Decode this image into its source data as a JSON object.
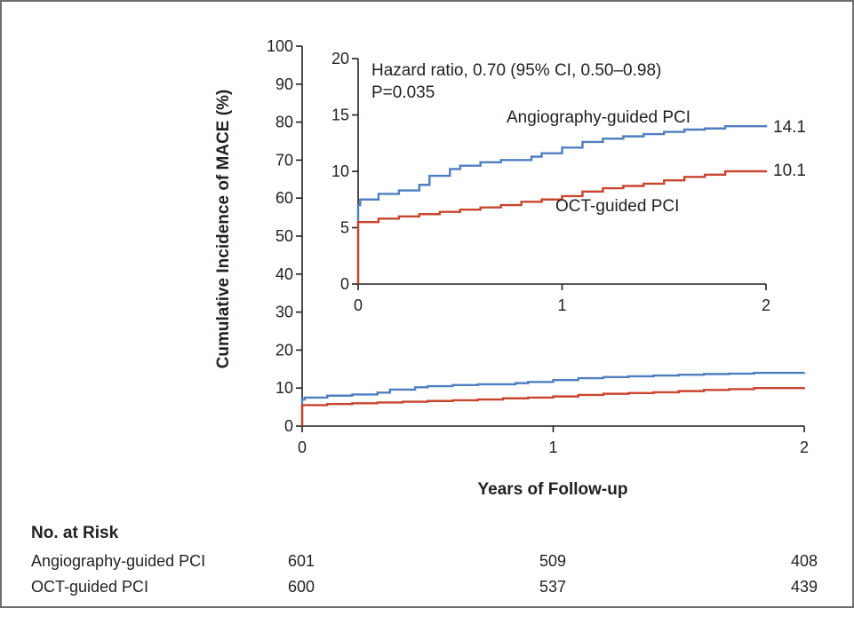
{
  "chart_data": {
    "type": "line",
    "xlabel": "Years of Follow-up",
    "ylabel": "Cumulative Incidence of MACE (%)",
    "xlim": [
      0,
      2
    ],
    "ylim": [
      0,
      100
    ],
    "x_ticks": [
      "0",
      "1",
      "2"
    ],
    "y_ticks": [
      "0",
      "10",
      "20",
      "30",
      "40",
      "50",
      "60",
      "70",
      "80",
      "90",
      "100"
    ],
    "colors": {
      "angiography": "#4f7fc0",
      "oct": "#c9452e"
    },
    "series": [
      {
        "name": "Angiography-guided PCI",
        "end_label": "14.1",
        "points": [
          [
            0,
            0
          ],
          [
            0,
            7.0
          ],
          [
            0.01,
            7.5
          ],
          [
            0.1,
            8.0
          ],
          [
            0.2,
            8.3
          ],
          [
            0.3,
            8.8
          ],
          [
            0.35,
            9.6
          ],
          [
            0.45,
            10.2
          ],
          [
            0.5,
            10.5
          ],
          [
            0.6,
            10.8
          ],
          [
            0.7,
            11.0
          ],
          [
            0.85,
            11.3
          ],
          [
            0.9,
            11.6
          ],
          [
            1.0,
            12.1
          ],
          [
            1.1,
            12.6
          ],
          [
            1.2,
            12.9
          ],
          [
            1.3,
            13.1
          ],
          [
            1.4,
            13.3
          ],
          [
            1.5,
            13.5
          ],
          [
            1.6,
            13.7
          ],
          [
            1.7,
            13.8
          ],
          [
            1.8,
            14.0
          ],
          [
            2.0,
            14.1
          ]
        ]
      },
      {
        "name": "OCT-guided PCI",
        "end_label": "10.1",
        "points": [
          [
            0,
            0
          ],
          [
            0,
            5.5
          ],
          [
            0.1,
            5.8
          ],
          [
            0.2,
            6.0
          ],
          [
            0.3,
            6.2
          ],
          [
            0.4,
            6.4
          ],
          [
            0.5,
            6.6
          ],
          [
            0.6,
            6.8
          ],
          [
            0.7,
            7.0
          ],
          [
            0.8,
            7.3
          ],
          [
            0.9,
            7.5
          ],
          [
            1.0,
            7.8
          ],
          [
            1.1,
            8.2
          ],
          [
            1.2,
            8.5
          ],
          [
            1.3,
            8.7
          ],
          [
            1.4,
            8.9
          ],
          [
            1.5,
            9.2
          ],
          [
            1.6,
            9.5
          ],
          [
            1.7,
            9.7
          ],
          [
            1.8,
            10.0
          ],
          [
            2.0,
            10.1
          ]
        ]
      }
    ],
    "inset": {
      "xlim": [
        0,
        2
      ],
      "ylim": [
        0,
        20
      ],
      "x_ticks": [
        "0",
        "1",
        "2"
      ],
      "y_ticks": [
        "0",
        "5",
        "10",
        "15",
        "20"
      ],
      "annotation_lines": [
        "Hazard ratio, 0.70 (95% CI, 0.50–0.98)",
        "P=0.035"
      ]
    },
    "risk_table": {
      "title": "No. at Risk",
      "rows": [
        {
          "label": "Angiography-guided PCI",
          "values": [
            "601",
            "509",
            "408"
          ]
        },
        {
          "label": "OCT-guided PCI",
          "values": [
            "600",
            "537",
            "439"
          ]
        }
      ]
    }
  }
}
